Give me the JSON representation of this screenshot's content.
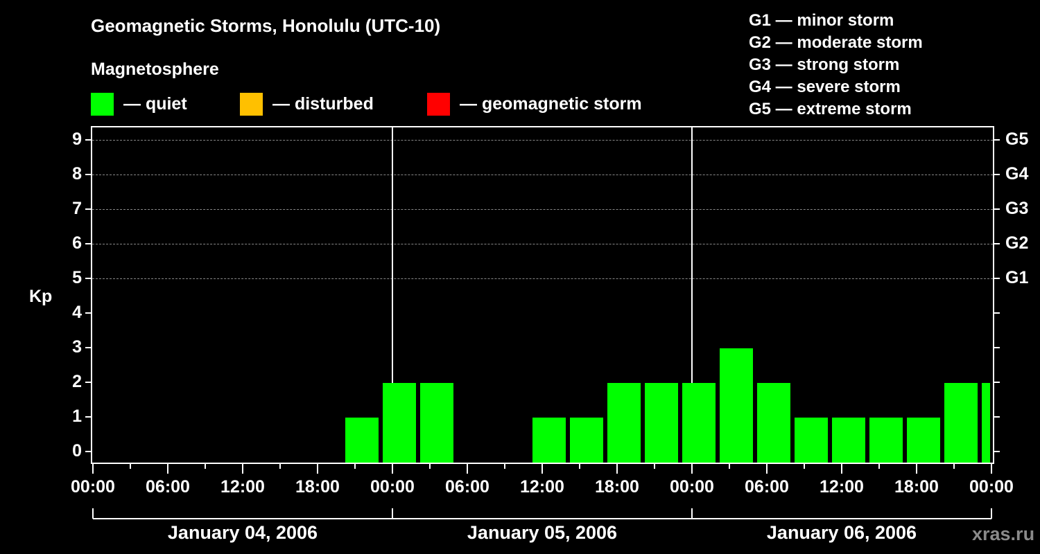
{
  "header": {
    "title": "Geomagnetic Storms, Honolulu (UTC-10)",
    "subtitle": "Magnetosphere"
  },
  "legend": [
    {
      "label": "— quiet",
      "color": "#00ff00"
    },
    {
      "label": "— disturbed",
      "color": "#ffc000"
    },
    {
      "label": "— geomagnetic storm",
      "color": "#ff0000"
    }
  ],
  "storm_scale": [
    "G1 — minor storm",
    "G2 — moderate storm",
    "G3 — strong storm",
    "G4 — severe storm",
    "G5 — extreme storm"
  ],
  "axis": {
    "ylabel": "Kp",
    "yticks": [
      "0",
      "1",
      "2",
      "3",
      "4",
      "5",
      "6",
      "7",
      "8",
      "9"
    ],
    "gticks": [
      {
        "kp": 5,
        "label": "G1"
      },
      {
        "kp": 6,
        "label": "G2"
      },
      {
        "kp": 7,
        "label": "G3"
      },
      {
        "kp": 8,
        "label": "G4"
      },
      {
        "kp": 9,
        "label": "G5"
      }
    ],
    "xticks": [
      "00:00",
      "06:00",
      "12:00",
      "18:00",
      "00:00",
      "06:00",
      "12:00",
      "18:00",
      "00:00",
      "06:00",
      "12:00",
      "18:00",
      "00:00"
    ],
    "days": [
      "January 04, 2006",
      "January 05, 2006",
      "January 06, 2006"
    ]
  },
  "watermark": "xras.ru",
  "chart_data": {
    "type": "bar",
    "title": "Geomagnetic Storms, Honolulu (UTC-10)",
    "subtitle": "Magnetosphere",
    "xlabel": "",
    "ylabel": "Kp",
    "ylim": [
      0,
      9
    ],
    "grid": true,
    "bar_interval_hours": 3,
    "categories": [
      "Jan 04 00:00",
      "Jan 04 03:00",
      "Jan 04 06:00",
      "Jan 04 09:00",
      "Jan 04 12:00",
      "Jan 04 15:00",
      "Jan 04 18:00",
      "Jan 04 21:00",
      "Jan 05 00:00",
      "Jan 05 03:00",
      "Jan 05 06:00",
      "Jan 05 09:00",
      "Jan 05 12:00",
      "Jan 05 15:00",
      "Jan 05 18:00",
      "Jan 05 21:00",
      "Jan 06 00:00",
      "Jan 06 03:00",
      "Jan 06 06:00",
      "Jan 06 09:00",
      "Jan 06 12:00",
      "Jan 06 15:00",
      "Jan 06 18:00",
      "Jan 06 21:00",
      "Jan 07 00:00"
    ],
    "values": [
      0,
      0,
      0,
      0,
      0,
      0,
      0,
      1,
      2,
      2,
      0,
      0,
      1,
      1,
      2,
      2,
      2,
      3,
      2,
      1,
      1,
      1,
      1,
      2,
      2
    ],
    "bar_colors": "#00ff00",
    "legend": [
      "quiet",
      "disturbed",
      "geomagnetic storm"
    ],
    "right_axis": {
      "5": "G1",
      "6": "G2",
      "7": "G3",
      "8": "G4",
      "9": "G5"
    },
    "x_tick_labels": [
      "00:00",
      "06:00",
      "12:00",
      "18:00",
      "00:00",
      "06:00",
      "12:00",
      "18:00",
      "00:00",
      "06:00",
      "12:00",
      "18:00",
      "00:00"
    ],
    "day_labels": [
      "January 04, 2006",
      "January 05, 2006",
      "January 06, 2006"
    ]
  }
}
